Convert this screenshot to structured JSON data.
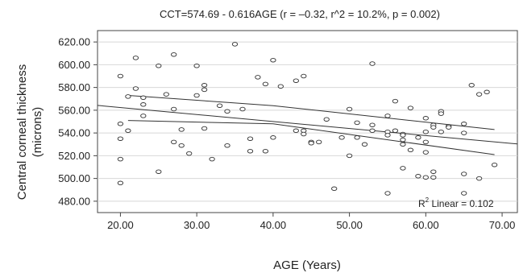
{
  "chart_data": {
    "type": "scatter",
    "title": "CCT=574.69 - 0.616AGE (r = –0.32, r^2 = 10.2%, p = 0.002)",
    "xlabel": "AGE (Years)",
    "ylabel_line1": "Central corneal thickness",
    "ylabel_line2": "(microns)",
    "xlim": [
      17,
      72
    ],
    "ylim": [
      470,
      630
    ],
    "x_ticks": [
      20,
      30,
      40,
      50,
      60,
      70
    ],
    "x_tick_labels": [
      "20.00",
      "30.00",
      "40.00",
      "50.00",
      "60.00",
      "70.00"
    ],
    "y_ticks": [
      480,
      500,
      520,
      540,
      560,
      580,
      600,
      620
    ],
    "y_tick_labels": [
      "480.00",
      "500.00",
      "520.00",
      "540.00",
      "560.00",
      "580.00",
      "600.00",
      "620.00"
    ],
    "grid": "horizontal",
    "regression": {
      "intercept": 574.69,
      "slope": -0.616,
      "ci_upper": [
        [
          21,
          573
        ],
        [
          40,
          564
        ],
        [
          69,
          543
        ]
      ],
      "ci_lower": [
        [
          21,
          551
        ],
        [
          40,
          548
        ],
        [
          69,
          521
        ]
      ]
    },
    "annotation": {
      "prefix": "R",
      "sup": "2",
      "suffix": " Linear = 0.102"
    },
    "points": [
      [
        20,
        590
      ],
      [
        20,
        548
      ],
      [
        20,
        535
      ],
      [
        20,
        517
      ],
      [
        20,
        496
      ],
      [
        21,
        572
      ],
      [
        21,
        542
      ],
      [
        22,
        606
      ],
      [
        22,
        579
      ],
      [
        23,
        571
      ],
      [
        23,
        565
      ],
      [
        23,
        555
      ],
      [
        25,
        599
      ],
      [
        25,
        506
      ],
      [
        26,
        574
      ],
      [
        27,
        609
      ],
      [
        27,
        561
      ],
      [
        27,
        532
      ],
      [
        28,
        543
      ],
      [
        28,
        529
      ],
      [
        29,
        522
      ],
      [
        30,
        599
      ],
      [
        30,
        573
      ],
      [
        31,
        582
      ],
      [
        31,
        578
      ],
      [
        31,
        544
      ],
      [
        32,
        517
      ],
      [
        33,
        564
      ],
      [
        34,
        559
      ],
      [
        34,
        529
      ],
      [
        35,
        618
      ],
      [
        36,
        561
      ],
      [
        37,
        535
      ],
      [
        37,
        524
      ],
      [
        38,
        589
      ],
      [
        39,
        583
      ],
      [
        39,
        524
      ],
      [
        40,
        604
      ],
      [
        40,
        536
      ],
      [
        41,
        581
      ],
      [
        43,
        586
      ],
      [
        43,
        542
      ],
      [
        44,
        590
      ],
      [
        44,
        542
      ],
      [
        44,
        539
      ],
      [
        45,
        532
      ],
      [
        45,
        531
      ],
      [
        46,
        532
      ],
      [
        47,
        552
      ],
      [
        48,
        491
      ],
      [
        49,
        536
      ],
      [
        50,
        561
      ],
      [
        50,
        520
      ],
      [
        51,
        549
      ],
      [
        51,
        536
      ],
      [
        52,
        530
      ],
      [
        53,
        601
      ],
      [
        53,
        547
      ],
      [
        53,
        542
      ],
      [
        55,
        555
      ],
      [
        55,
        541
      ],
      [
        55,
        538
      ],
      [
        55,
        487
      ],
      [
        56,
        568
      ],
      [
        56,
        542
      ],
      [
        57,
        539
      ],
      [
        57,
        538
      ],
      [
        57,
        534
      ],
      [
        57,
        530
      ],
      [
        57,
        509
      ],
      [
        58,
        562
      ],
      [
        58,
        525
      ],
      [
        59,
        536
      ],
      [
        59,
        502
      ],
      [
        60,
        553
      ],
      [
        60,
        541
      ],
      [
        60,
        532
      ],
      [
        60,
        523
      ],
      [
        60,
        501
      ],
      [
        61,
        547
      ],
      [
        61,
        545
      ],
      [
        61,
        506
      ],
      [
        61,
        501
      ],
      [
        62,
        559
      ],
      [
        62,
        557
      ],
      [
        62,
        541
      ],
      [
        63,
        546
      ],
      [
        63,
        545
      ],
      [
        65,
        548
      ],
      [
        65,
        540
      ],
      [
        65,
        504
      ],
      [
        65,
        487
      ],
      [
        66,
        582
      ],
      [
        67,
        574
      ],
      [
        67,
        500
      ],
      [
        68,
        576
      ],
      [
        69,
        512
      ]
    ]
  }
}
